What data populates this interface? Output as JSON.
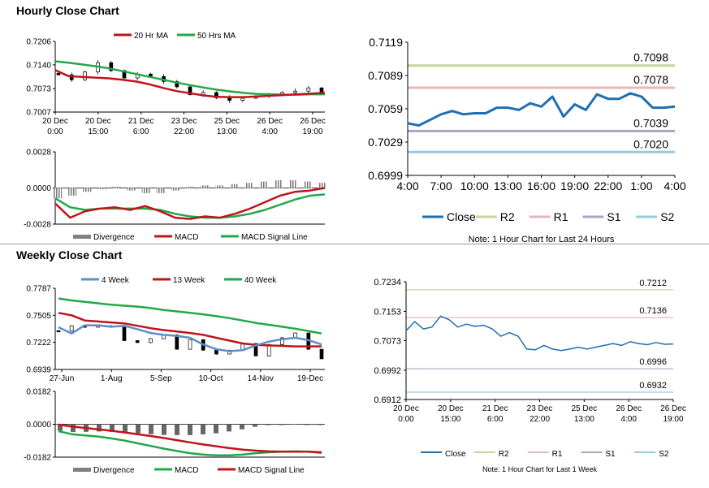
{
  "hourly_title": "Hourly Close Chart",
  "weekly_title": "Weekly Close Chart",
  "colors": {
    "ma_short": "#c0141c",
    "ma_long": "#22a84a",
    "four_week": "#5b8fc7",
    "close": "#1f6fb2",
    "r2": "#c3d69b",
    "r1": "#e6b9b8",
    "s1": "#b3a2c7",
    "s2": "#93cddd",
    "candle": "#000000",
    "divergence": "#808080",
    "grid": "#aaaaaa"
  },
  "chart_data": [
    {
      "id": "hourly-price",
      "type": "candlestick",
      "title": "Hourly Close Chart",
      "legend": [
        {
          "label": "20 Hr MA",
          "color": "#c0141c"
        },
        {
          "label": "50 Hrs MA",
          "color": "#22a84a"
        }
      ],
      "y_ticks": [
        "0.7206",
        "0.7140",
        "0.7073",
        "0.7007"
      ],
      "ylim": [
        0.7007,
        0.7206
      ],
      "x_ticks": [
        [
          "20 Dec",
          "0:00"
        ],
        [
          "20 Dec",
          "15:00"
        ],
        [
          "21 Dec",
          "6:00"
        ],
        [
          "23 Dec",
          "22:00"
        ],
        [
          "25 Dec",
          "13:00"
        ],
        [
          "26 Dec",
          "4:00"
        ],
        [
          "26 Dec",
          "19:00"
        ]
      ],
      "series": [
        {
          "name": "20 Hr MA",
          "values": [
            0.7125,
            0.7108,
            0.7106,
            0.7104,
            0.7102,
            0.7098,
            0.7093,
            0.7085,
            0.7075,
            0.7066,
            0.706,
            0.7054,
            0.705,
            0.7049,
            0.7049,
            0.7051,
            0.7053,
            0.7055,
            0.7057,
            0.7059,
            0.7061
          ]
        },
        {
          "name": "50 Hrs MA",
          "values": [
            0.715,
            0.7146,
            0.7141,
            0.7136,
            0.713,
            0.7122,
            0.7114,
            0.7106,
            0.7098,
            0.709,
            0.7083,
            0.7076,
            0.707,
            0.7065,
            0.7061,
            0.7058,
            0.7057,
            0.7056,
            0.7056,
            0.7057,
            0.7057
          ]
        }
      ],
      "close": [
        0.7112,
        0.7098,
        0.712,
        0.7146,
        0.7124,
        0.7103,
        0.7114,
        0.7107,
        0.7093,
        0.7078,
        0.7056,
        0.7062,
        0.7047,
        0.704,
        0.7046,
        0.7052,
        0.7055,
        0.7062,
        0.7066,
        0.7075,
        0.7062
      ]
    },
    {
      "id": "hourly-macd",
      "type": "line+bar",
      "legend": [
        {
          "label": "Divergence",
          "color": "#808080"
        },
        {
          "label": "MACD",
          "color": "#c0141c"
        },
        {
          "label": "MACD Signal Line",
          "color": "#22a84a"
        }
      ],
      "y_ticks": [
        "0.0028",
        "0.0000",
        "-0.0028"
      ],
      "ylim": [
        -0.0028,
        0.0028
      ],
      "series": [
        {
          "name": "MACD",
          "values": [
            -0.0012,
            -0.0023,
            -0.0018,
            -0.0016,
            -0.0015,
            -0.0017,
            -0.0014,
            -0.0018,
            -0.0023,
            -0.0024,
            -0.0022,
            -0.0023,
            -0.002,
            -0.0016,
            -0.0011,
            -0.0006,
            -0.0003,
            -0.0002,
            0.0
          ]
        },
        {
          "name": "MACD Signal Line",
          "values": [
            -0.0008,
            -0.0015,
            -0.0017,
            -0.0016,
            -0.0016,
            -0.0016,
            -0.0016,
            -0.0017,
            -0.002,
            -0.0022,
            -0.0023,
            -0.0023,
            -0.0022,
            -0.002,
            -0.0017,
            -0.0013,
            -0.0009,
            -0.0006,
            -0.0005
          ]
        }
      ],
      "divergence": [
        -0.0008,
        -0.0006,
        -0.0003,
        -0.0001,
        0.0001,
        -0.0002,
        -0.0004,
        -0.0004,
        -0.0002,
        0.0001,
        0.0002,
        0.0002,
        0.0003,
        0.0004,
        0.0005,
        0.0006,
        0.0006,
        0.0005,
        0.0004
      ]
    },
    {
      "id": "hourly-24h",
      "type": "line",
      "y_ticks": [
        "0.7119",
        "0.7089",
        "0.7059",
        "0.7029",
        "0.6999"
      ],
      "ylim": [
        0.6999,
        0.7119
      ],
      "x_ticks": [
        "4:00",
        "7:00",
        "10:00",
        "13:00",
        "16:00",
        "19:00",
        "22:00",
        "1:00",
        "4:00"
      ],
      "close": [
        0.7046,
        0.7044,
        0.7049,
        0.7054,
        0.7057,
        0.7054,
        0.7055,
        0.7055,
        0.706,
        0.706,
        0.7058,
        0.7064,
        0.7061,
        0.707,
        0.7052,
        0.7063,
        0.7058,
        0.7072,
        0.7068,
        0.7068,
        0.7073,
        0.707,
        0.706,
        0.706,
        0.7061
      ],
      "levels": [
        {
          "name": "R2",
          "value": 0.7098,
          "label": "0.7098"
        },
        {
          "name": "R1",
          "value": 0.7078,
          "label": "0.7078"
        },
        {
          "name": "S1",
          "value": 0.7039,
          "label": "0.7039"
        },
        {
          "name": "S2",
          "value": 0.702,
          "label": "0.7020"
        }
      ],
      "legend": [
        "Close",
        "R2",
        "R1",
        "S1",
        "S2"
      ],
      "note": "Note: 1 Hour Chart for Last 24 Hours"
    },
    {
      "id": "weekly-price",
      "type": "candlestick",
      "title": "Weekly Close Chart",
      "legend": [
        {
          "label": "4 Week",
          "color": "#5b8fc7"
        },
        {
          "label": "13 Week",
          "color": "#c0141c"
        },
        {
          "label": "40 Week",
          "color": "#22a84a"
        }
      ],
      "y_ticks": [
        "0.7787",
        "0.7505",
        "0.7222",
        "0.6939"
      ],
      "ylim": [
        0.6939,
        0.7787
      ],
      "x_ticks": [
        "27-Jun",
        "1-Aug",
        "5-Sep",
        "10-Oct",
        "14-Nov",
        "19-Dec"
      ],
      "series": [
        {
          "name": "4 Week",
          "values": [
            0.738,
            0.7315,
            0.74,
            0.74,
            0.7385,
            0.7395,
            0.736,
            0.732,
            0.73,
            0.729,
            0.727,
            0.72,
            0.715,
            0.713,
            0.714,
            0.719,
            0.723,
            0.7255,
            0.727,
            0.7245,
            0.72
          ]
        },
        {
          "name": "13 Week",
          "values": [
            0.753,
            0.7505,
            0.745,
            0.744,
            0.743,
            0.742,
            0.7395,
            0.737,
            0.735,
            0.7335,
            0.732,
            0.73,
            0.727,
            0.724,
            0.721,
            0.7195,
            0.719,
            0.7185,
            0.718,
            0.718,
            0.718
          ]
        },
        {
          "name": "40 Week",
          "values": [
            0.768,
            0.766,
            0.7645,
            0.763,
            0.7615,
            0.7605,
            0.7595,
            0.758,
            0.756,
            0.7545,
            0.753,
            0.7515,
            0.7495,
            0.7475,
            0.745,
            0.7425,
            0.7405,
            0.7385,
            0.7365,
            0.734,
            0.7315
          ]
        }
      ],
      "close": [
        0.734,
        0.7395,
        0.738,
        0.7395,
        0.738,
        0.724,
        0.722,
        0.726,
        0.73,
        0.715,
        0.725,
        0.714,
        0.71,
        0.714,
        0.721,
        0.708,
        0.72,
        0.727,
        0.732,
        0.715,
        0.705
      ]
    },
    {
      "id": "weekly-macd",
      "type": "line+bar",
      "legend": [
        {
          "label": "Divergence",
          "color": "#808080"
        },
        {
          "label": "MACD",
          "color": "#22a84a"
        },
        {
          "label": "MACD Signal Line",
          "color": "#c0141c"
        }
      ],
      "y_ticks": [
        "0.0182",
        "0.0000",
        "-0.0182"
      ],
      "ylim": [
        -0.0182,
        0.0182
      ],
      "series": [
        {
          "name": "MACD",
          "values": [
            -0.0038,
            -0.0055,
            -0.0062,
            -0.0068,
            -0.0078,
            -0.009,
            -0.0105,
            -0.012,
            -0.0135,
            -0.0148,
            -0.016,
            -0.0168,
            -0.0172,
            -0.0172,
            -0.0168,
            -0.016,
            -0.0155,
            -0.0152,
            -0.015,
            -0.0152,
            -0.0158
          ]
        },
        {
          "name": "MACD Signal Line",
          "values": [
            -0.0002,
            -0.0012,
            -0.002,
            -0.0028,
            -0.0036,
            -0.0045,
            -0.0055,
            -0.0065,
            -0.0076,
            -0.0088,
            -0.01,
            -0.0112,
            -0.0122,
            -0.0132,
            -0.014,
            -0.0146,
            -0.015,
            -0.0152,
            -0.0152,
            -0.0152,
            -0.0155
          ]
        },
        {
          "name": "Divergence",
          "values": [
            -0.0036,
            -0.0043,
            -0.0042,
            -0.004,
            -0.0042,
            -0.0045,
            -0.005,
            -0.0055,
            -0.0059,
            -0.006,
            -0.006,
            -0.0056,
            -0.005,
            -0.004,
            -0.0028,
            -0.0014,
            -0.0005,
            0.0,
            0.0002,
            0.0,
            -0.0003
          ]
        }
      ]
    },
    {
      "id": "weekly-1week",
      "type": "line",
      "y_ticks": [
        "0.7234",
        "0.7153",
        "0.7073",
        "0.6992",
        "0.6912"
      ],
      "ylim": [
        0.6912,
        0.7234
      ],
      "x_ticks": [
        [
          "20 Dec",
          "0:00"
        ],
        [
          "20 Dec",
          "15:00"
        ],
        [
          "21 Dec",
          "6:00"
        ],
        [
          "23 Dec",
          "22:00"
        ],
        [
          "25 Dec",
          "13:00"
        ],
        [
          "26 Dec",
          "4:00"
        ],
        [
          "26 Dec",
          "19:00"
        ]
      ],
      "close": [
        0.71,
        0.7125,
        0.7105,
        0.711,
        0.714,
        0.713,
        0.711,
        0.7118,
        0.7112,
        0.7115,
        0.7105,
        0.7085,
        0.7095,
        0.7085,
        0.705,
        0.7048,
        0.706,
        0.705,
        0.7046,
        0.705,
        0.7055,
        0.705,
        0.7055,
        0.706,
        0.7065,
        0.706,
        0.707,
        0.7065,
        0.7062,
        0.7068,
        0.7063,
        0.7064
      ],
      "levels": [
        {
          "name": "R2",
          "value": 0.7212,
          "label": "0.7212"
        },
        {
          "name": "R1",
          "value": 0.7136,
          "label": "0.7136"
        },
        {
          "name": "S1",
          "value": 0.6996,
          "label": "0.6996"
        },
        {
          "name": "S2",
          "value": 0.6932,
          "label": "0.6932"
        }
      ],
      "legend": [
        "Close",
        "R2",
        "R1",
        "S1",
        "S2"
      ],
      "note": "Note: 1 Hour Chart for Last 1 Week"
    }
  ]
}
